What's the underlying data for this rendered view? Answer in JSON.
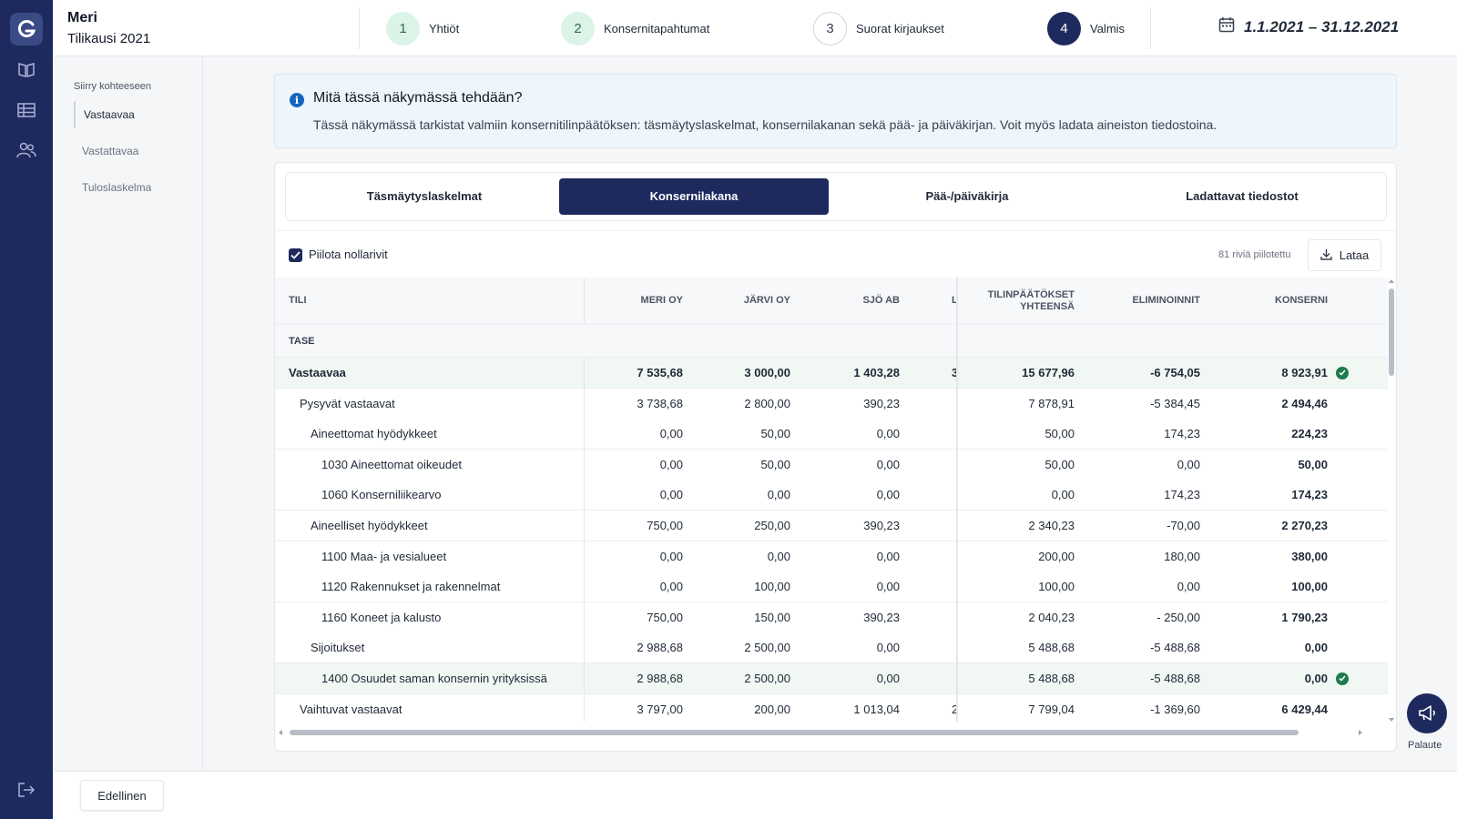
{
  "header": {
    "company_name": "Meri",
    "period": "Tilikausi 2021",
    "steps": [
      {
        "num": "1",
        "label": "Yhtiöt",
        "state": "done"
      },
      {
        "num": "2",
        "label": "Konsernitapahtumat",
        "state": "done"
      },
      {
        "num": "3",
        "label": "Suorat kirjaukset",
        "state": "todo"
      },
      {
        "num": "4",
        "label": "Valmis",
        "state": "active"
      }
    ],
    "date_range": "1.1.2021 – 31.12.2021"
  },
  "subnav": {
    "title": "Siirry kohteeseen",
    "items": [
      "Vastaavaa",
      "Vastattavaa",
      "Tuloslaskelma"
    ]
  },
  "info": {
    "title": "Mitä tässä näkymässä tehdään?",
    "description": "Tässä näkymässä tarkistat valmiin konsernitilinpäätöksen: täsmäytyslaskelmat, konsernilakanan sekä pää- ja päiväkirjan. Voit myös ladata aineiston tiedostoina."
  },
  "tabs": [
    "Täsmäytyslaskelmat",
    "Konsernilakana",
    "Pää-/päiväkirja",
    "Ladattavat tiedostot"
  ],
  "toolbar": {
    "hide_zero_label": "Piilota nollarivit",
    "hidden_count": "81 riviä piilotettu",
    "download_label": "Lataa"
  },
  "table": {
    "headers": {
      "account": "TILI",
      "meri": "MERI OY",
      "jarvi": "JÄRVI OY",
      "sjo": "SJÖ AB",
      "partial": "L",
      "total_line1": "TILINPÄÄTÖKSET",
      "total_line2": "YHTEENSÄ",
      "elim": "ELIMINOINNIT",
      "group": "KONSERNI"
    },
    "section": "TASE",
    "rows": [
      {
        "name": "Vastaavaa",
        "level": 0,
        "bold": true,
        "hl": true,
        "meri": "7 535,68",
        "jarvi": "3 000,00",
        "sjo": "1 403,28",
        "partial": "3",
        "total": "15 677,96",
        "elim": "-6 754,05",
        "group": "8 923,91",
        "check": true
      },
      {
        "name": "Pysyvät vastaavat",
        "level": 1,
        "meri": "3 738,68",
        "jarvi": "2 800,00",
        "sjo": "390,23",
        "partial": "",
        "total": "7 878,91",
        "elim": "-5 384,45",
        "group": "2 494,46"
      },
      {
        "name": "Aineettomat hyödykkeet",
        "level": 2,
        "meri": "0,00",
        "jarvi": "50,00",
        "sjo": "0,00",
        "partial": "",
        "total": "50,00",
        "elim": "174,23",
        "group": "224,23"
      },
      {
        "name": "1030 Aineettomat oikeudet",
        "level": 3,
        "meri": "0,00",
        "jarvi": "50,00",
        "sjo": "0,00",
        "partial": "",
        "total": "50,00",
        "elim": "0,00",
        "group": "50,00"
      },
      {
        "name": "1060 Konserniliikearvo",
        "level": 3,
        "meri": "0,00",
        "jarvi": "0,00",
        "sjo": "0,00",
        "partial": "",
        "total": "0,00",
        "elim": "174,23",
        "group": "174,23"
      },
      {
        "name": "Aineelliset hyödykkeet",
        "level": 2,
        "meri": "750,00",
        "jarvi": "250,00",
        "sjo": "390,23",
        "partial": "",
        "total": "2 340,23",
        "elim": "-70,00",
        "group": "2 270,23"
      },
      {
        "name": "1100 Maa- ja vesialueet",
        "level": 3,
        "meri": "0,00",
        "jarvi": "0,00",
        "sjo": "0,00",
        "partial": "",
        "total": "200,00",
        "elim": "180,00",
        "group": "380,00"
      },
      {
        "name": "1120 Rakennukset ja rakennelmat",
        "level": 3,
        "meri": "0,00",
        "jarvi": "100,00",
        "sjo": "0,00",
        "partial": "",
        "total": "100,00",
        "elim": "0,00",
        "group": "100,00"
      },
      {
        "name": "1160 Koneet ja kalusto",
        "level": 3,
        "meri": "750,00",
        "jarvi": "150,00",
        "sjo": "390,23",
        "partial": "",
        "total": "2 040,23",
        "elim": "- 250,00",
        "group": "1 790,23"
      },
      {
        "name": "Sijoitukset",
        "level": 2,
        "meri": "2 988,68",
        "jarvi": "2 500,00",
        "sjo": "0,00",
        "partial": "",
        "total": "5 488,68",
        "elim": "-5 488,68",
        "group": "0,00"
      },
      {
        "name": "1400 Osuudet saman konsernin yrityksissä",
        "level": 3,
        "hl": true,
        "meri": "2 988,68",
        "jarvi": "2 500,00",
        "sjo": "0,00",
        "partial": "",
        "total": "5 488,68",
        "elim": "-5 488,68",
        "group": "0,00",
        "check": true
      },
      {
        "name": "Vaihtuvat vastaavat",
        "level": 1,
        "meri": "3 797,00",
        "jarvi": "200,00",
        "sjo": "1 013,04",
        "partial": "2",
        "total": "7 799,04",
        "elim": "-1 369,60",
        "group": "6 429,44"
      }
    ]
  },
  "footer": {
    "prev_label": "Edellinen",
    "feedback_label": "Palaute"
  },
  "colors": {
    "navy": "#1e2a5e",
    "done_step": "#dcf3e7",
    "check_green": "#1d7a4c",
    "highlight_row": "#f1f7f3"
  }
}
